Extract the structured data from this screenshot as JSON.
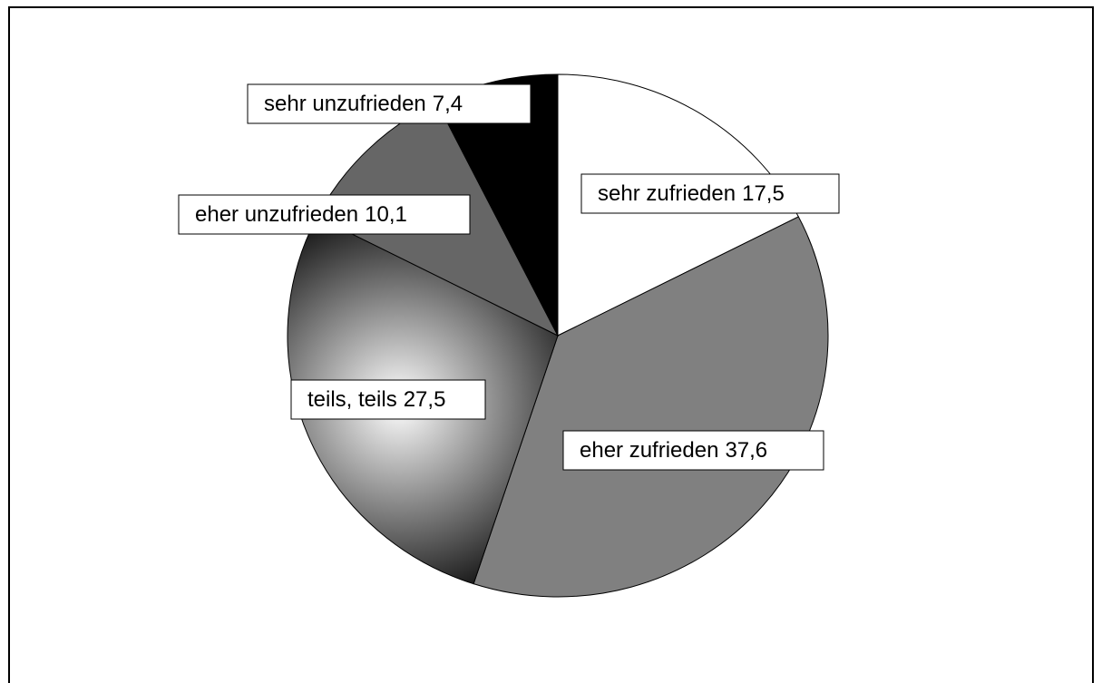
{
  "chart_data": {
    "type": "pie",
    "categories": [
      "sehr zufrieden",
      "eher zufrieden",
      "teils, teils",
      "eher unzufrieden",
      "sehr unzufrieden"
    ],
    "values": [
      17.5,
      37.6,
      27.5,
      10.1,
      7.4
    ],
    "value_labels": [
      "17,5",
      "37,6",
      "27,5",
      "10,1",
      "7,4"
    ],
    "colors": [
      "#ffffff",
      "#808080",
      {
        "gradient": [
          "#ffffff",
          "#000000"
        ]
      },
      "#666666",
      "#000000"
    ]
  }
}
